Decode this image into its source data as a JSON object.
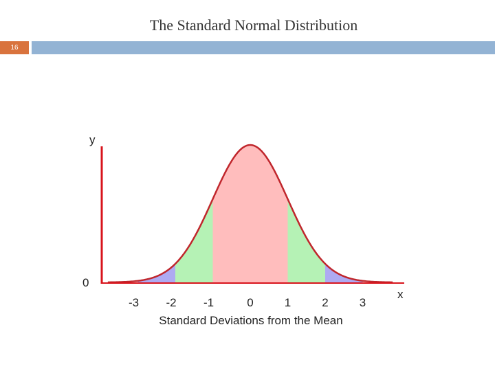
{
  "slide": {
    "title": "The Standard Normal Distribution",
    "page_number": "16",
    "header_bar_color": "#93b3d4",
    "page_badge_color": "#d9733d"
  },
  "chart_data": {
    "type": "area",
    "title": "",
    "xlabel": "Standard Deviations from the Mean",
    "ylabel": "y",
    "x_axis_letter": "x",
    "y_zero_label": "0",
    "xlim": [
      -3.8,
      3.8
    ],
    "ylim": [
      0,
      0.42
    ],
    "x_ticks": [
      -3,
      -2,
      -1,
      0,
      1,
      2,
      3
    ],
    "x_tick_labels": [
      "-3",
      "-2",
      "-1",
      "0",
      "1",
      "2",
      "3"
    ],
    "curve": "standard normal density",
    "regions": [
      {
        "from": -3,
        "to": -2,
        "color": "#aeaaf2"
      },
      {
        "from": -2,
        "to": -1,
        "color": "#b5f2b5"
      },
      {
        "from": -1,
        "to": 1,
        "color": "#ffbdbd"
      },
      {
        "from": 1,
        "to": 2,
        "color": "#b5f2b5"
      },
      {
        "from": 2,
        "to": 3,
        "color": "#aeaaf2"
      }
    ],
    "line_color": "#c0262c",
    "axis_color": "#d8141c",
    "grid": false
  }
}
